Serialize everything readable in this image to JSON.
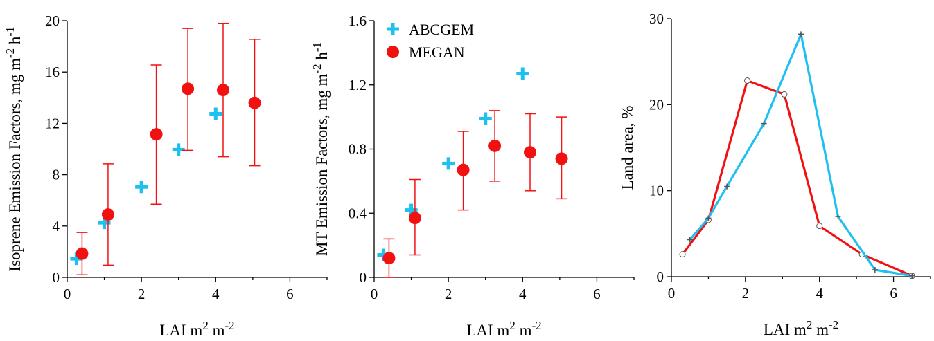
{
  "colors": {
    "abcgem": "#1ec0ef",
    "megan": "#f21111",
    "axis": "#000000"
  },
  "legend": [
    {
      "label": "ABCGEM",
      "marker": "plus-icon"
    },
    {
      "label": "MEGAN",
      "marker": "filled-circle-icon"
    }
  ],
  "chart_data": [
    {
      "type": "scatter",
      "xlabel_base": "LAI m",
      "xlabel_sup1": "2",
      "xlabel_mid": " m",
      "xlabel_sup2": "-2",
      "ylabel_base": "Isoprene Emission Factors, mg m",
      "ylabel_sup1": "-2",
      "ylabel_mid": " h",
      "ylabel_sup2": "-1",
      "xlim": [
        0,
        7
      ],
      "ylim": [
        0,
        20
      ],
      "xticks": [
        0,
        2,
        4,
        6
      ],
      "yticks": [
        0,
        4,
        8,
        12,
        16,
        20
      ],
      "xtick_labels": [
        "0",
        "2",
        "4",
        "6"
      ],
      "ytick_labels": [
        "0",
        "4",
        "8",
        "12",
        "16",
        "20"
      ],
      "series": [
        {
          "name": "ABCGEM",
          "marker": "plus",
          "x": [
            0.25,
            1.0,
            2.0,
            3.0,
            4.0
          ],
          "y": [
            1.45,
            4.25,
            7.05,
            9.95,
            12.75
          ]
        },
        {
          "name": "MEGAN",
          "marker": "circle",
          "x": [
            0.4,
            1.1,
            2.4,
            3.25,
            4.2,
            5.05
          ],
          "y": [
            1.85,
            4.9,
            11.15,
            14.7,
            14.6,
            13.6
          ],
          "err_low": [
            0.2,
            0.95,
            5.7,
            9.9,
            9.4,
            8.7
          ],
          "err_high": [
            3.5,
            8.85,
            16.55,
            19.4,
            19.8,
            18.55
          ]
        }
      ]
    },
    {
      "type": "scatter",
      "xlabel_base": "LAI m",
      "xlabel_sup1": "2",
      "xlabel_mid": " m",
      "xlabel_sup2": "-2",
      "ylabel_base": "MT Emission Factors, mg m",
      "ylabel_sup1": "-2",
      "ylabel_mid": " h",
      "ylabel_sup2": "-1",
      "xlim": [
        0,
        7
      ],
      "ylim": [
        0,
        1.6
      ],
      "xticks": [
        0,
        2,
        4,
        6
      ],
      "yticks": [
        0,
        0.4,
        0.8,
        1.2,
        1.6
      ],
      "xtick_labels": [
        "0",
        "2",
        "4",
        "6"
      ],
      "ytick_labels": [
        "0",
        "0.4",
        "0.8",
        "1.2",
        "1.6"
      ],
      "series": [
        {
          "name": "ABCGEM",
          "marker": "plus",
          "x": [
            0.25,
            1.0,
            2.0,
            3.0,
            4.0
          ],
          "y": [
            0.14,
            0.42,
            0.71,
            0.99,
            1.27
          ]
        },
        {
          "name": "MEGAN",
          "marker": "circle",
          "x": [
            0.4,
            1.1,
            2.4,
            3.25,
            4.2,
            5.05
          ],
          "y": [
            0.12,
            0.37,
            0.67,
            0.82,
            0.78,
            0.74
          ],
          "err_low": [
            0.0,
            0.14,
            0.42,
            0.6,
            0.54,
            0.49
          ],
          "err_high": [
            0.24,
            0.61,
            0.91,
            1.04,
            1.02,
            1.0
          ]
        }
      ]
    },
    {
      "type": "line",
      "xlabel_base": "LAI m",
      "xlabel_sup1": "2",
      "xlabel_mid": " m",
      "xlabel_sup2": "-2",
      "ylabel_base": "Land area, %",
      "xlim": [
        0,
        7
      ],
      "ylim": [
        0,
        30
      ],
      "xticks": [
        0,
        2,
        4,
        6
      ],
      "yticks": [
        0,
        10,
        20,
        30
      ],
      "xtick_labels": [
        "0",
        "2",
        "4",
        "6"
      ],
      "ytick_labels": [
        "0",
        "10",
        "20",
        "30"
      ],
      "series": [
        {
          "name": "MEGAN",
          "marker": "open-circle",
          "x": [
            0.3,
            1.0,
            2.05,
            3.05,
            4.0,
            5.15,
            6.5
          ],
          "y": [
            2.6,
            6.6,
            22.8,
            21.2,
            5.9,
            2.6,
            0.1
          ]
        },
        {
          "name": "ABCGEM",
          "marker": "plus",
          "x": [
            0.5,
            1.0,
            1.5,
            2.5,
            3.5,
            4.5,
            5.5,
            6.5
          ],
          "y": [
            4.3,
            6.8,
            10.5,
            17.8,
            28.2,
            7.0,
            0.8,
            0.1
          ]
        }
      ]
    }
  ]
}
